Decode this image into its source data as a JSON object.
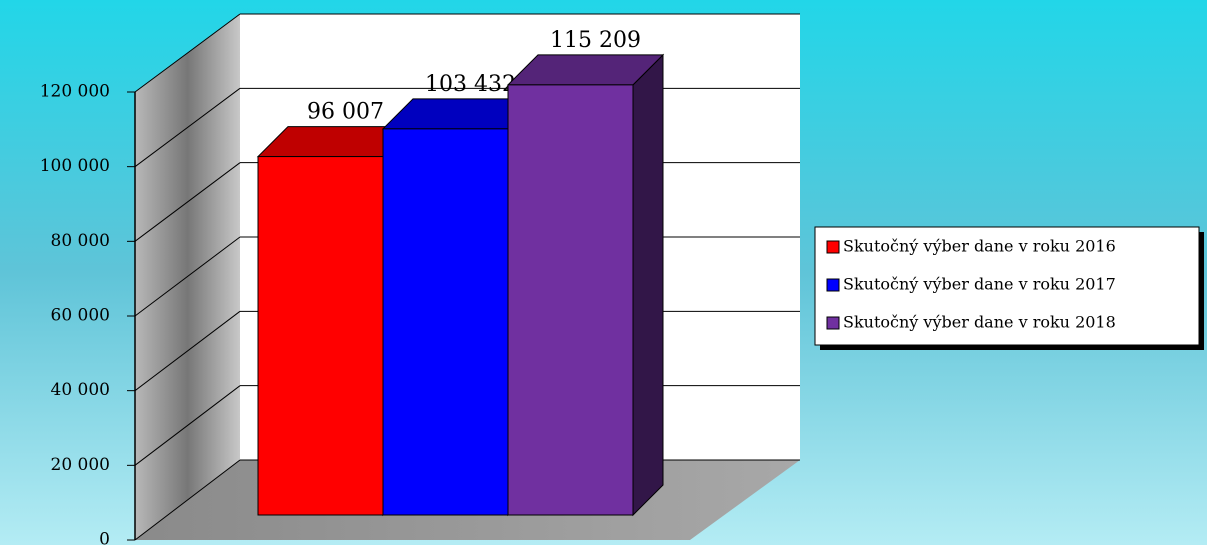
{
  "chart_data": {
    "type": "bar",
    "series": [
      {
        "name": "Skutočný výber dane v roku 2016",
        "color": "#ff0000",
        "values": [
          96007
        ],
        "value_labels": [
          "96 007"
        ]
      },
      {
        "name": "Skutočný výber dane v roku 2017",
        "color": "#0000ff",
        "values": [
          103432
        ],
        "value_labels": [
          "103 432"
        ]
      },
      {
        "name": "Skutočný výber dane v roku 2018",
        "color": "#7030a0",
        "values": [
          115209
        ],
        "value_labels": [
          "115 209"
        ]
      }
    ],
    "ylim": [
      0,
      120000
    ],
    "yticks": [
      0,
      {
        "value": 20000,
        "label": "20 000"
      },
      {
        "value": 40000,
        "label": "40 000"
      },
      {
        "value": 60000,
        "label": "60 000"
      },
      {
        "value": 80000,
        "label": "80 000"
      },
      {
        "value": 100000,
        "label": "100 000"
      },
      {
        "value": 120000,
        "label": "120 000"
      }
    ],
    "grid": true,
    "legend": "right"
  }
}
